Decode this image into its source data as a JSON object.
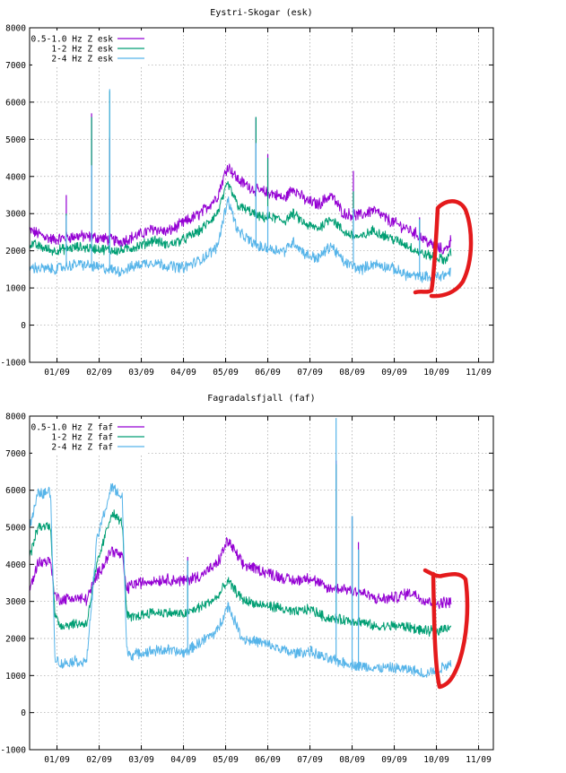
{
  "colors": {
    "series": [
      "#9400d3",
      "#009e73",
      "#56b4e9"
    ],
    "annotation": "#e41a1c",
    "grid": "#a0a0a0",
    "axis": "#000000"
  },
  "chart_data": [
    {
      "type": "line",
      "title": "Eystri-Skogar (esk)",
      "xlabel": "",
      "ylabel": "",
      "ylim": [
        -1000,
        8000
      ],
      "yticks": [
        "-1000",
        "0",
        "1000",
        "2000",
        "3000",
        "4000",
        "5000",
        "6000",
        "7000",
        "8000"
      ],
      "xticks": [
        "01/09",
        "02/09",
        "03/09",
        "04/09",
        "05/09",
        "06/09",
        "07/09",
        "08/09",
        "09/09",
        "10/09",
        "11/09"
      ],
      "xlim_days": [
        0.35,
        11.35
      ],
      "grid": true,
      "legend_position": "top-left",
      "series": [
        {
          "name": "0.5-1.0 Hz Z esk",
          "x": [
            0.35,
            0.9,
            1.5,
            2.0,
            2.5,
            3.0,
            3.3,
            3.6,
            4.0,
            4.4,
            4.8,
            5.05,
            5.3,
            5.6,
            5.8,
            6.1,
            6.4,
            6.6,
            6.9,
            7.2,
            7.5,
            7.8,
            8.2,
            8.5,
            8.9,
            9.3,
            9.6,
            9.9,
            10.2,
            10.35
          ],
          "values": [
            2550,
            2300,
            2400,
            2350,
            2250,
            2450,
            2600,
            2500,
            2750,
            3000,
            3450,
            4300,
            3900,
            3700,
            3600,
            3550,
            3400,
            3700,
            3350,
            3250,
            3500,
            3000,
            2950,
            3100,
            2800,
            2600,
            2400,
            2150,
            2000,
            2300
          ]
        },
        {
          "name": "1-2 Hz Z esk",
          "x": [
            0.35,
            0.9,
            1.5,
            2.0,
            2.5,
            3.0,
            3.3,
            3.6,
            4.0,
            4.4,
            4.8,
            5.05,
            5.3,
            5.6,
            5.8,
            6.1,
            6.4,
            6.6,
            6.9,
            7.2,
            7.5,
            7.8,
            8.2,
            8.5,
            8.9,
            9.3,
            9.6,
            9.9,
            10.2,
            10.35
          ],
          "values": [
            2200,
            2000,
            2100,
            2050,
            2000,
            2150,
            2300,
            2150,
            2300,
            2550,
            3000,
            3800,
            3200,
            3050,
            2900,
            2900,
            2800,
            3000,
            2700,
            2600,
            2900,
            2500,
            2350,
            2550,
            2350,
            2150,
            1950,
            1850,
            1750,
            1950
          ]
        },
        {
          "name": "2-4 Hz Z esk",
          "x": [
            0.35,
            0.9,
            1.5,
            2.0,
            2.5,
            3.0,
            3.3,
            3.6,
            4.0,
            4.4,
            4.8,
            5.05,
            5.3,
            5.6,
            5.8,
            6.1,
            6.4,
            6.6,
            6.9,
            7.2,
            7.5,
            7.8,
            8.2,
            8.5,
            8.9,
            9.3,
            9.6,
            9.9,
            10.2,
            10.35
          ],
          "values": [
            1550,
            1500,
            1650,
            1550,
            1450,
            1650,
            1700,
            1600,
            1550,
            1750,
            2100,
            3400,
            2500,
            2250,
            2100,
            2050,
            2000,
            2250,
            1900,
            1800,
            2150,
            1700,
            1500,
            1650,
            1550,
            1350,
            1300,
            1300,
            1350,
            1450
          ]
        }
      ],
      "spikes": [
        {
          "x": 1.22,
          "values": [
            3500,
            3000,
            2950
          ]
        },
        {
          "x": 1.82,
          "values": [
            5700,
            5600,
            4300
          ]
        },
        {
          "x": 2.25,
          "values": [
            5050,
            6300,
            6350
          ]
        },
        {
          "x": 5.72,
          "values": [
            5600,
            5600,
            4900
          ]
        },
        {
          "x": 6.0,
          "values": [
            4600,
            4500,
            3200
          ]
        },
        {
          "x": 8.03,
          "values": [
            4150,
            3600,
            3150
          ]
        },
        {
          "x": 9.6,
          "values": [
            2900,
            2850,
            2850
          ]
        }
      ]
    },
    {
      "type": "line",
      "title": "Fagradalsfjall (faf)",
      "xlabel": "",
      "ylabel": "",
      "ylim": [
        -1000,
        8000
      ],
      "yticks": [
        "-1000",
        "0",
        "1000",
        "2000",
        "3000",
        "4000",
        "5000",
        "6000",
        "7000",
        "8000"
      ],
      "xticks": [
        "01/09",
        "02/09",
        "03/09",
        "04/09",
        "05/09",
        "06/09",
        "07/09",
        "08/09",
        "09/09",
        "10/09",
        "11/09"
      ],
      "xlim_days": [
        0.35,
        11.35
      ],
      "grid": true,
      "legend_position": "top-left",
      "series": [
        {
          "name": "0.5-1.0 Hz Z faf",
          "x": [
            0.35,
            0.55,
            0.85,
            0.95,
            1.1,
            1.4,
            1.7,
            1.95,
            2.3,
            2.55,
            2.65,
            2.75,
            3.2,
            3.6,
            4.0,
            4.4,
            4.8,
            5.05,
            5.4,
            5.8,
            6.2,
            6.6,
            7.0,
            7.4,
            7.8,
            8.2,
            8.6,
            9.0,
            9.4,
            9.7,
            10.0,
            10.35
          ],
          "values": [
            3300,
            4050,
            4100,
            3150,
            3050,
            3100,
            3050,
            3700,
            4400,
            4200,
            3300,
            3450,
            3550,
            3600,
            3550,
            3700,
            4000,
            4650,
            4000,
            3850,
            3700,
            3550,
            3650,
            3350,
            3350,
            3250,
            3050,
            3100,
            3250,
            3050,
            2950,
            3000
          ]
        },
        {
          "name": "1-2 Hz Z faf",
          "x": [
            0.35,
            0.55,
            0.85,
            0.95,
            1.1,
            1.4,
            1.7,
            1.95,
            2.3,
            2.55,
            2.65,
            2.75,
            3.2,
            3.6,
            4.0,
            4.4,
            4.8,
            5.05,
            5.4,
            5.8,
            6.2,
            6.6,
            7.0,
            7.4,
            7.8,
            8.2,
            8.6,
            9.0,
            9.4,
            9.7,
            10.0,
            10.35
          ],
          "values": [
            4200,
            5000,
            5050,
            2600,
            2350,
            2400,
            2400,
            4000,
            5400,
            5100,
            2650,
            2550,
            2700,
            2700,
            2650,
            2850,
            3100,
            3550,
            3050,
            2900,
            2850,
            2700,
            2800,
            2550,
            2500,
            2450,
            2300,
            2350,
            2300,
            2200,
            2200,
            2350
          ]
        },
        {
          "name": "2-4 Hz Z faf",
          "x": [
            0.35,
            0.55,
            0.85,
            0.95,
            1.1,
            1.4,
            1.7,
            1.95,
            2.3,
            2.55,
            2.65,
            2.75,
            3.2,
            3.6,
            4.0,
            4.4,
            4.8,
            5.05,
            5.4,
            5.8,
            6.2,
            6.6,
            7.0,
            7.4,
            7.8,
            8.2,
            8.6,
            9.0,
            9.4,
            9.7,
            10.0,
            10.35
          ],
          "values": [
            5000,
            5900,
            5950,
            1500,
            1300,
            1400,
            1350,
            4700,
            6100,
            5800,
            1700,
            1550,
            1650,
            1700,
            1600,
            1900,
            2200,
            2900,
            2000,
            1900,
            1750,
            1600,
            1650,
            1450,
            1350,
            1250,
            1200,
            1200,
            1150,
            1050,
            1150,
            1350
          ]
        }
      ],
      "spikes": [
        {
          "x": 4.1,
          "values": [
            4200,
            4100,
            4100
          ]
        },
        {
          "x": 7.62,
          "values": [
            6800,
            6700,
            7950
          ]
        },
        {
          "x": 8.0,
          "values": [
            5300,
            5300,
            5300
          ]
        },
        {
          "x": 8.15,
          "values": [
            4600,
            4400,
            4400
          ]
        }
      ]
    }
  ]
}
